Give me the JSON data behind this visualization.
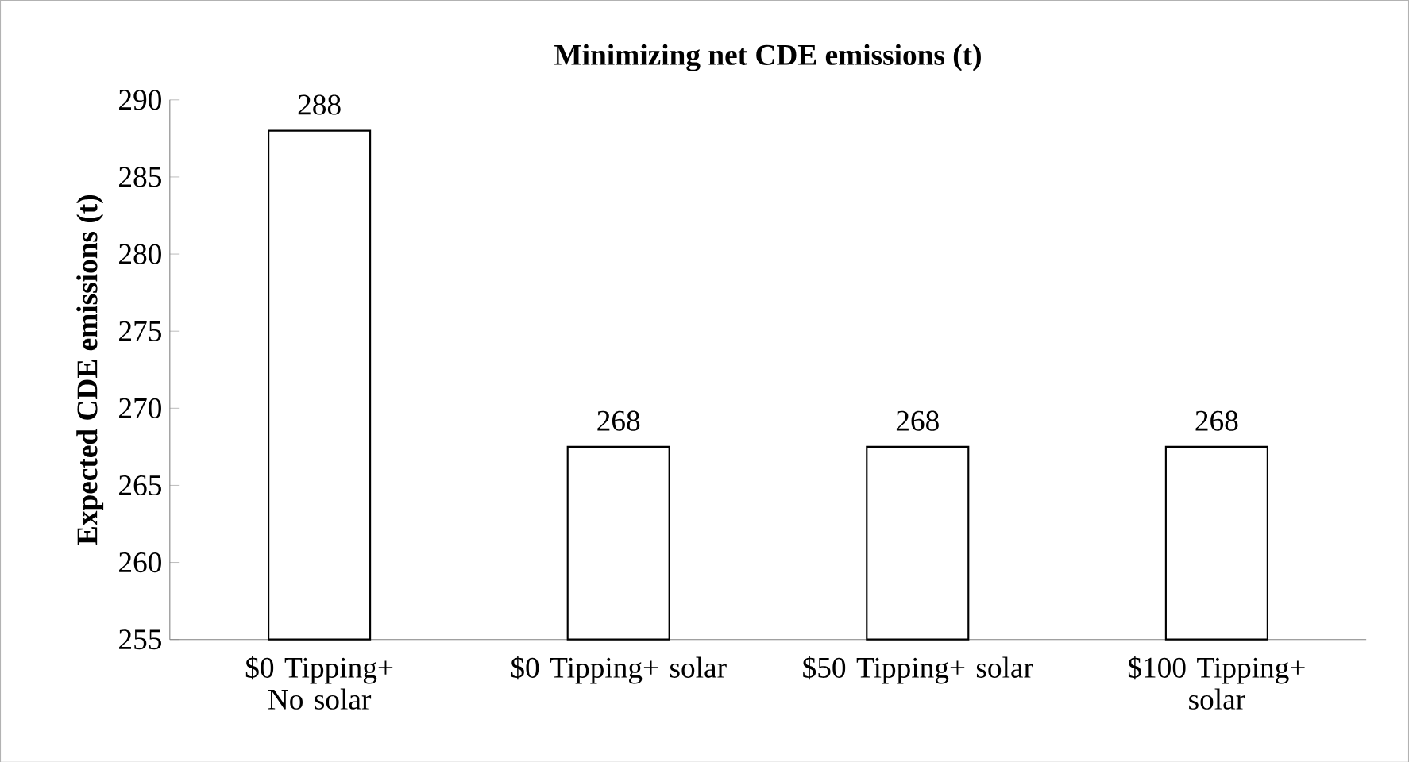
{
  "chart_data": {
    "type": "bar",
    "title": "Minimizing net CDE emissions (t)",
    "ylabel": "Expected CDE emissions (t)",
    "categories": [
      "$0 Tipping+ No solar",
      "$0 Tipping+ solar",
      "$50 Tipping+ solar",
      "$100 Tipping+ solar"
    ],
    "values": [
      288,
      267.5,
      267.5,
      267.5
    ],
    "value_labels": [
      "288",
      "268",
      "268",
      "268"
    ],
    "color": "#000000",
    "ylim": [
      255,
      290
    ],
    "yticks": [
      255,
      260,
      265,
      270,
      275,
      280,
      285,
      290
    ],
    "grid": false
  }
}
